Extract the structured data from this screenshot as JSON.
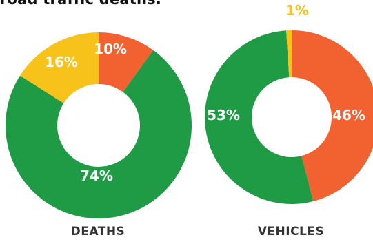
{
  "heading": "road traffic deaths.",
  "colors": {
    "green": "#1f9a45",
    "orange": "#f26130",
    "yellow": "#f7c21a"
  },
  "chart_data": [
    {
      "type": "pie",
      "title": "DEATHS",
      "slices": [
        {
          "label": "10%",
          "value": 10,
          "color": "#f26130"
        },
        {
          "label": "74%",
          "value": 74,
          "color": "#1f9a45"
        },
        {
          "label": "16%",
          "value": 16,
          "color": "#f7c21a"
        }
      ]
    },
    {
      "type": "pie",
      "title": "VEHICLES",
      "slices": [
        {
          "label": "46%",
          "value": 46,
          "color": "#f26130"
        },
        {
          "label": "53%",
          "value": 53,
          "color": "#1f9a45"
        },
        {
          "label": "1%",
          "value": 1,
          "color": "#f7c21a"
        }
      ]
    }
  ]
}
